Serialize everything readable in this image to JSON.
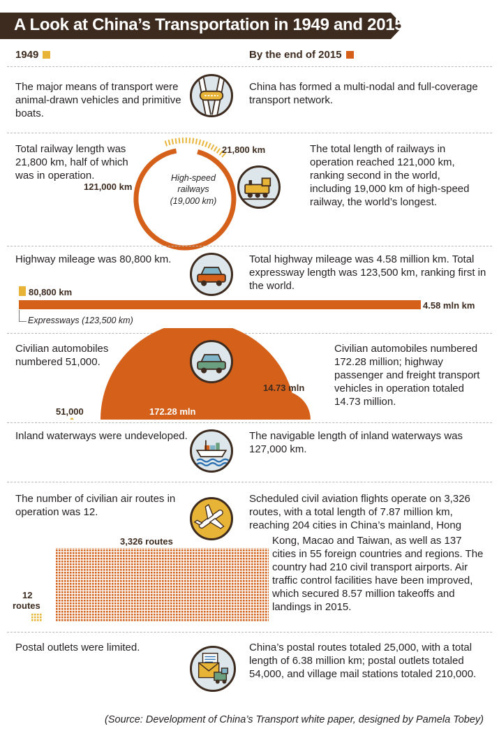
{
  "title": "A Look at China’s Transportation in 1949 and 2015",
  "legend": {
    "left": "1949",
    "right": "By the end of 2015"
  },
  "colors": {
    "y1949": "#e8b437",
    "y2015": "#d4601a",
    "dark": "#3d2b1f",
    "icon_bg": "#dde6ea"
  },
  "rows": {
    "network": {
      "left": "The major means of transport were animal-drawn vehicles and primitive boats.",
      "right": "China has formed a multi-nodal and full-coverage transport network.",
      "icon": "road-network-icon"
    },
    "railway": {
      "left": "Total railway length was 21,800 km, half of which was in operation.",
      "right": "The total length of railways in operation reached 121,000 km, ranking second in the world, including 19,000 km of high-speed railway, the world’s longest.",
      "label_1949": "21,800 km",
      "label_2015": "121,000 km",
      "label_hsr_1": "High-speed",
      "label_hsr_2": "railways",
      "label_hsr_3": "(19,000 km)",
      "icon": "locomotive-icon"
    },
    "highway": {
      "left": "Highway mileage was 80,800 km.",
      "right": "Total highway mileage was 4.58 million km. Total expressway length was 123,500 km, ranking first in the world.",
      "label_1949": "80,800 km",
      "label_2015": "4.58 mln km",
      "label_expressway": "Expressways (123,500 km)",
      "icon": "car-icon"
    },
    "automobiles": {
      "left": "Civilian automobiles numbered 51,000.",
      "right": "Civilian automobiles numbered 172.28 million; highway passenger and freight transport vehicles in operation totaled 14.73 million.",
      "label_1949": "51,000",
      "label_2015": "172.28 mln",
      "label_vehicles": "14.73 mln",
      "icon": "car-icon"
    },
    "waterways": {
      "left": "Inland waterways were undeveloped.",
      "right": "The navigable length of inland waterways was 127,000 km.",
      "icon": "ship-icon"
    },
    "air": {
      "left": "The number of civilian air routes in operation was 12.",
      "right_top": "Scheduled civil aviation flights operate on 3,326 routes, with a total length of 7.87 million km, reaching 204 cities in China’s mainland, Hong",
      "right_bottom": "Kong, Macao and Taiwan, as well as 137 cities in 55 foreign countries and regions. The country had 210 civil transport airports. Air traffic control facilities have been improved, which secured 8.57 million takeoffs and landings in 2015.",
      "label_2015": "3,326 routes",
      "label_1949_1": "12",
      "label_1949_2": "routes",
      "icon": "airplane-icon"
    },
    "postal": {
      "left": "Postal outlets were limited.",
      "right": "China’s postal routes totaled 25,000, with a total length of 6.38 million km; postal outlets totaled 54,000, and village mail stations totaled 210,000.",
      "icon": "mail-truck-icon"
    }
  },
  "source": "(Source: Development of China’s Transport white paper, designed by Pamela Tobey)",
  "chart_data": [
    {
      "type": "bar",
      "title": "Railway length (km)",
      "categories": [
        "1949",
        "2015",
        "2015 high-speed"
      ],
      "values": [
        21800,
        121000,
        19000
      ]
    },
    {
      "type": "bar",
      "title": "Highway mileage (km)",
      "categories": [
        "1949",
        "2015",
        "2015 expressways"
      ],
      "values": [
        80800,
        4580000,
        123500
      ]
    },
    {
      "type": "bar",
      "title": "Civilian automobiles",
      "categories": [
        "1949",
        "2015",
        "2015 passenger and freight vehicles"
      ],
      "values": [
        51000,
        172280000,
        14730000
      ]
    },
    {
      "type": "bar",
      "title": "Civilian air routes",
      "categories": [
        "1949",
        "2015"
      ],
      "values": [
        12,
        3326
      ]
    }
  ]
}
